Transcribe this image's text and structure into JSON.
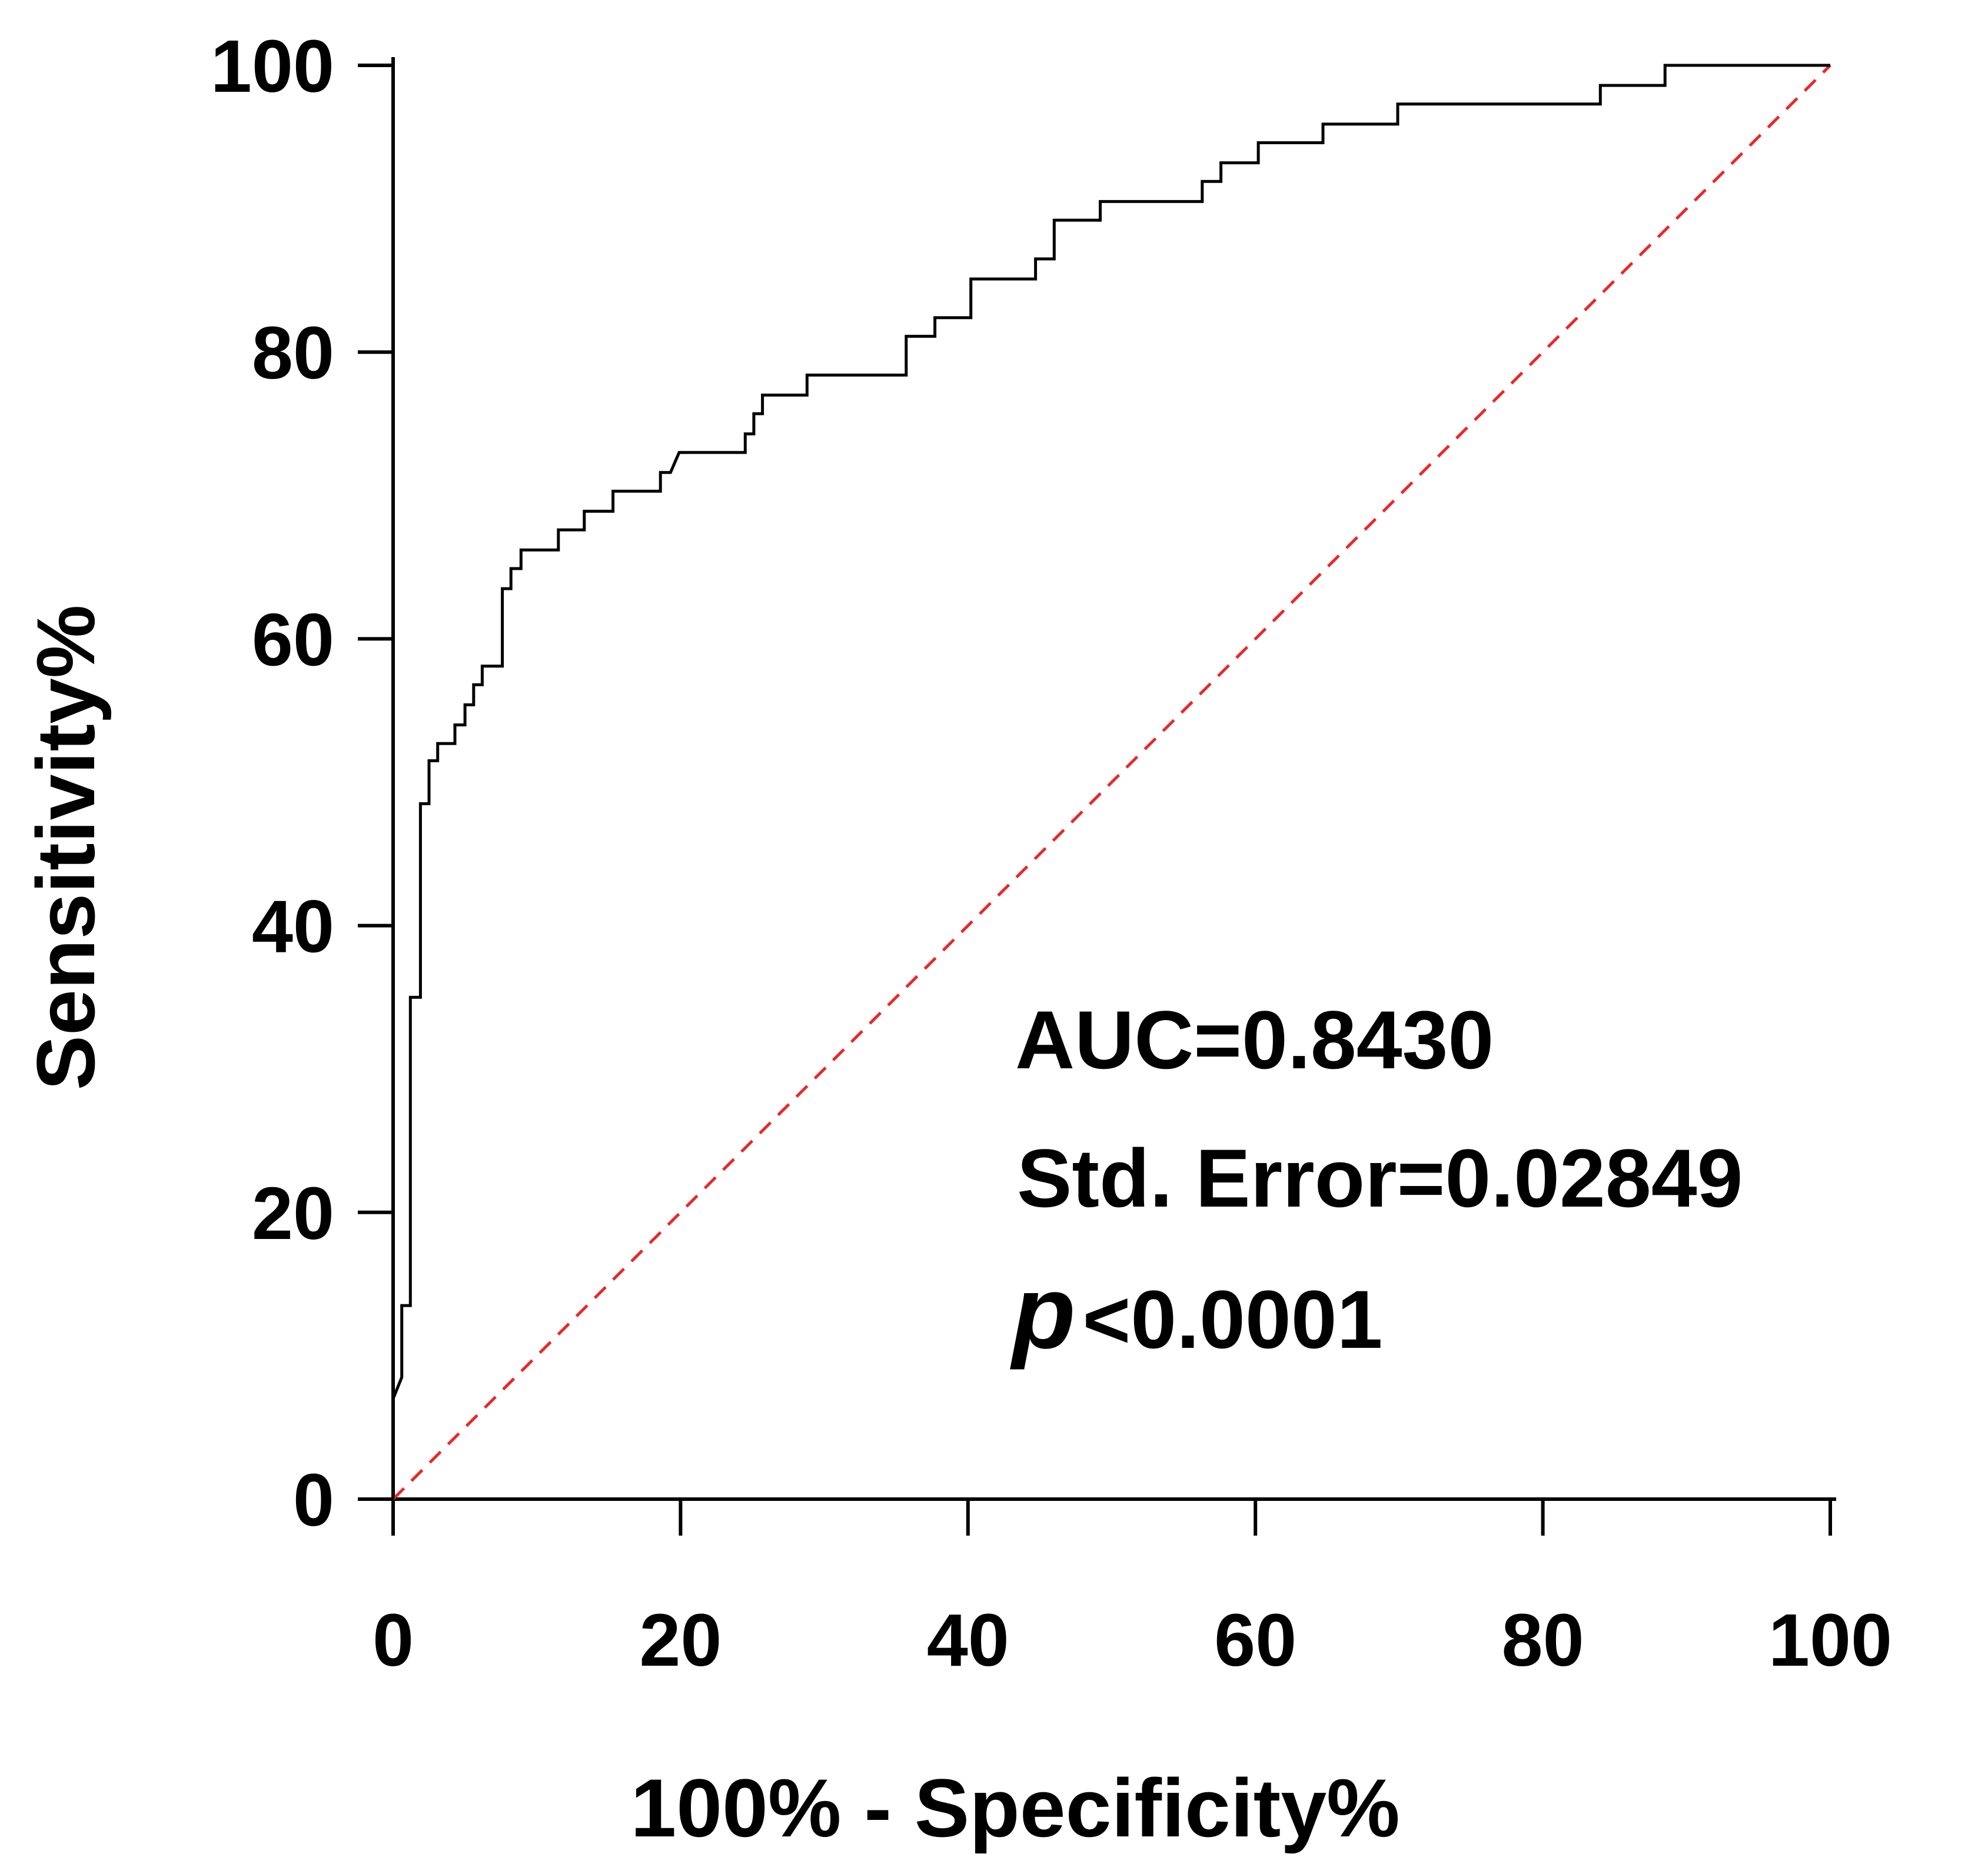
{
  "chart_data": {
    "type": "line",
    "title": "",
    "xlabel": "100% - Specificity%",
    "ylabel": "Sensitivity%",
    "xlim": [
      0,
      100
    ],
    "ylim": [
      0,
      100
    ],
    "x_ticks": [
      "0",
      "20",
      "40",
      "60",
      "80",
      "100"
    ],
    "y_ticks": [
      "0",
      "20",
      "40",
      "60",
      "80",
      "100"
    ],
    "grid": false,
    "legend": "none",
    "series": [
      {
        "style": "step",
        "color": "#000000",
        "points": [
          [
            0,
            0
          ],
          [
            0,
            7
          ],
          [
            0.6,
            8.5
          ],
          [
            0.6,
            13.5
          ],
          [
            1.2,
            13.5
          ],
          [
            1.2,
            35
          ],
          [
            1.9,
            35
          ],
          [
            1.9,
            48.5
          ],
          [
            2.5,
            48.5
          ],
          [
            2.5,
            51.5
          ],
          [
            3.1,
            51.5
          ],
          [
            3.1,
            52.7
          ],
          [
            4.3,
            52.7
          ],
          [
            4.3,
            54
          ],
          [
            5,
            54
          ],
          [
            5,
            55.4
          ],
          [
            5.6,
            55.4
          ],
          [
            5.6,
            56.8
          ],
          [
            6.2,
            56.8
          ],
          [
            6.2,
            58.1
          ],
          [
            7.6,
            58.1
          ],
          [
            7.6,
            63.5
          ],
          [
            8.2,
            63.5
          ],
          [
            8.2,
            64.9
          ],
          [
            8.9,
            64.9
          ],
          [
            8.9,
            66.2
          ],
          [
            11.5,
            66.2
          ],
          [
            11.5,
            67.6
          ],
          [
            13.3,
            67.6
          ],
          [
            13.3,
            68.9
          ],
          [
            15.3,
            68.9
          ],
          [
            15.3,
            70.3
          ],
          [
            18.6,
            70.3
          ],
          [
            18.6,
            71.6
          ],
          [
            19.3,
            71.6
          ],
          [
            19.9,
            73
          ],
          [
            24.5,
            73
          ],
          [
            24.5,
            74.3
          ],
          [
            25.1,
            74.3
          ],
          [
            25.1,
            75.7
          ],
          [
            25.7,
            75.7
          ],
          [
            25.7,
            77
          ],
          [
            28.8,
            77
          ],
          [
            28.8,
            78.4
          ],
          [
            35.7,
            78.4
          ],
          [
            35.7,
            81.1
          ],
          [
            37.7,
            81.1
          ],
          [
            37.7,
            82.4
          ],
          [
            40.2,
            82.4
          ],
          [
            40.2,
            85.1
          ],
          [
            44.7,
            85.1
          ],
          [
            44.7,
            86.5
          ],
          [
            46,
            86.5
          ],
          [
            46,
            89.2
          ],
          [
            49.2,
            89.2
          ],
          [
            49.2,
            90.5
          ],
          [
            56.3,
            90.5
          ],
          [
            56.3,
            91.9
          ],
          [
            57.6,
            91.9
          ],
          [
            57.6,
            93.2
          ],
          [
            60.2,
            93.2
          ],
          [
            60.2,
            94.6
          ],
          [
            64.7,
            94.6
          ],
          [
            64.7,
            95.9
          ],
          [
            69.9,
            95.9
          ],
          [
            69.9,
            97.3
          ],
          [
            84,
            97.3
          ],
          [
            84,
            98.6
          ],
          [
            88.5,
            98.6
          ],
          [
            88.5,
            100
          ],
          [
            100,
            100
          ]
        ]
      },
      {
        "style": "dashed",
        "color": "#e8282b",
        "points": [
          [
            0,
            0
          ],
          [
            100,
            100
          ]
        ]
      }
    ],
    "annotations": {
      "auc": "AUC=0.8430",
      "std_error": "Std. Error=0.02849",
      "p_symbol": "p",
      "p_value": "<0.0001"
    }
  }
}
